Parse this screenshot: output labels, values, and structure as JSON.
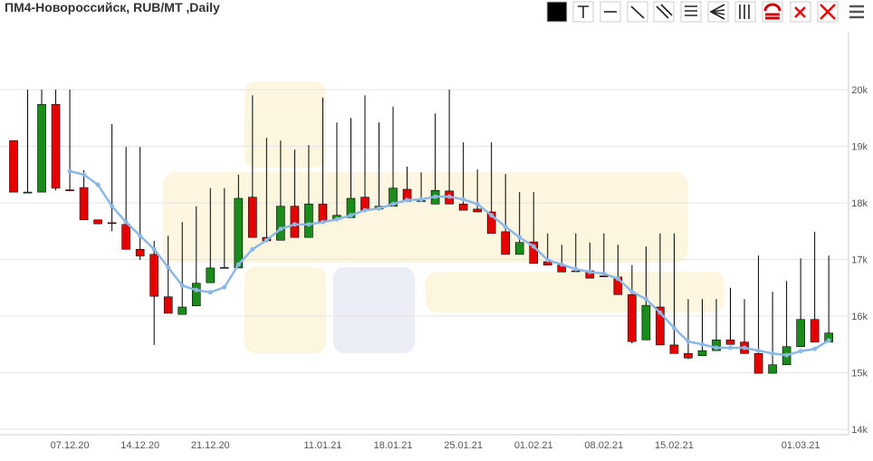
{
  "chart_data": {
    "type": "candlestick",
    "title": "ПМ4-Новороссийск, RUB/MT ,Daily",
    "categories": [
      null,
      null,
      null,
      null,
      "07.12.20",
      null,
      null,
      null,
      null,
      "14.12.20",
      null,
      null,
      null,
      null,
      "21.12.20",
      null,
      null,
      null,
      null,
      null,
      null,
      null,
      "11.01.21",
      null,
      null,
      null,
      null,
      "18.01.21",
      null,
      null,
      null,
      null,
      "25.01.21",
      null,
      null,
      null,
      null,
      "01.02.21",
      null,
      null,
      null,
      null,
      "08.02.21",
      null,
      null,
      null,
      null,
      "15.02.21",
      null,
      null,
      null,
      null,
      null,
      null,
      null,
      null,
      "01.03.21",
      null,
      null
    ],
    "open": [
      19100,
      18190,
      18190,
      19740,
      18230,
      18270,
      17700,
      17650,
      17620,
      17180,
      17090,
      16340,
      16030,
      16180,
      16590,
      16850,
      16850,
      18100,
      17390,
      17340,
      17940,
      17390,
      17980,
      17710,
      17740,
      18100,
      17890,
      17940,
      18240,
      18030,
      17980,
      18210,
      17980,
      17890,
      17840,
      17490,
      17090,
      17310,
      16960,
      16900,
      16800,
      16800,
      16710,
      16690,
      16380,
      15580,
      16160,
      15490,
      15340,
      15300,
      15390,
      15580,
      15540,
      15340,
      14990,
      15140,
      15460,
      15940,
      15540
    ],
    "high": [
      19100,
      20000,
      20000,
      20000,
      20000,
      18580,
      17700,
      19390,
      18990,
      18990,
      17330,
      17420,
      17660,
      17940,
      18260,
      18260,
      18500,
      19900,
      19150,
      19100,
      18940,
      19020,
      19860,
      19420,
      19500,
      19900,
      19420,
      19700,
      18640,
      18540,
      19580,
      20000,
      19070,
      18590,
      19070,
      18510,
      18190,
      18190,
      17460,
      17260,
      17460,
      17300,
      17460,
      17260,
      16900,
      17230,
      17460,
      17460,
      16300,
      16300,
      16300,
      16500,
      16300,
      17070,
      16430,
      16620,
      17020,
      17490,
      17070
    ],
    "low": [
      18190,
      18190,
      18190,
      18220,
      18220,
      17700,
      17630,
      17500,
      17180,
      16990,
      15490,
      16050,
      16030,
      16180,
      16590,
      16840,
      16850,
      17390,
      17330,
      17340,
      17390,
      17390,
      17660,
      17710,
      17740,
      17860,
      17890,
      17940,
      18030,
      18030,
      17980,
      17980,
      17870,
      17840,
      17460,
      17090,
      17090,
      16930,
      16900,
      16780,
      16790,
      16670,
      16690,
      16380,
      15520,
      15580,
      15490,
      15340,
      15240,
      15300,
      15390,
      15500,
      15340,
      14990,
      14990,
      15140,
      15460,
      15540,
      15540
    ],
    "close": [
      18190,
      18190,
      19740,
      18260,
      18220,
      17700,
      17630,
      17640,
      17180,
      17060,
      16350,
      16050,
      16160,
      16580,
      16850,
      16860,
      18080,
      17390,
      17330,
      17940,
      17390,
      17980,
      17660,
      17780,
      18080,
      17860,
      17940,
      18260,
      18030,
      18040,
      18220,
      17980,
      17870,
      17840,
      17460,
      17090,
      17300,
      16930,
      16900,
      16780,
      16790,
      16670,
      16700,
      16380,
      15550,
      16190,
      15490,
      15340,
      15260,
      15390,
      15580,
      15500,
      15340,
      14990,
      15140,
      15460,
      15940,
      15540,
      15700
    ],
    "up_color": "#1a8c1a",
    "down_color": "#e60000",
    "ma": {
      "color": "#8cb8e8",
      "values": [
        null,
        null,
        null,
        null,
        18560,
        18500,
        18320,
        17940,
        17660,
        17420,
        17180,
        16860,
        16540,
        16460,
        16420,
        16510,
        16910,
        17180,
        17340,
        17540,
        17620,
        17620,
        17660,
        17710,
        17780,
        17870,
        17900,
        17980,
        18050,
        18060,
        18110,
        18110,
        18060,
        17980,
        17780,
        17580,
        17390,
        17230,
        16990,
        16910,
        16830,
        16780,
        16750,
        16660,
        16430,
        16300,
        16060,
        15790,
        15550,
        15500,
        15440,
        15440,
        15440,
        15390,
        15340,
        15310,
        15380,
        15420,
        15570
      ]
    },
    "ylim": [
      13900,
      21000
    ],
    "yticks": [
      {
        "value": 14000,
        "label": "14k"
      },
      {
        "value": 15000,
        "label": "15k"
      },
      {
        "value": 16000,
        "label": "16k"
      },
      {
        "value": 17000,
        "label": "17k"
      },
      {
        "value": 18000,
        "label": "18k"
      },
      {
        "value": 19000,
        "label": "19k"
      },
      {
        "value": 20000,
        "label": "20k"
      }
    ],
    "grid": true
  }
}
